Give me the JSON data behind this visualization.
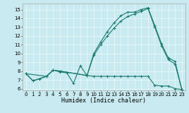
{
  "xlabel": "Humidex (Indice chaleur)",
  "bg_color": "#c8eaf0",
  "grid_color": "#e8f8f8",
  "line_color": "#1a7a6e",
  "xlim": [
    -0.5,
    23.5
  ],
  "ylim": [
    5.8,
    15.7
  ],
  "yticks": [
    6,
    7,
    8,
    9,
    10,
    11,
    12,
    13,
    14,
    15
  ],
  "xticks": [
    0,
    1,
    2,
    3,
    4,
    5,
    6,
    7,
    8,
    9,
    10,
    11,
    12,
    13,
    14,
    15,
    16,
    17,
    18,
    19,
    20,
    21,
    22,
    23
  ],
  "line1_x": [
    0,
    1,
    2,
    3,
    4,
    5,
    6,
    7,
    8,
    9,
    10,
    11,
    12,
    13,
    14,
    15,
    16,
    17,
    18,
    19,
    20,
    21,
    22,
    23
  ],
  "line1_y": [
    7.7,
    6.9,
    7.1,
    7.4,
    8.1,
    7.9,
    7.8,
    6.6,
    8.6,
    7.5,
    7.4,
    7.4,
    7.4,
    7.4,
    7.4,
    7.4,
    7.4,
    7.4,
    7.4,
    6.4,
    6.3,
    6.3,
    6.0,
    5.9
  ],
  "line2_x": [
    0,
    1,
    3,
    4,
    5,
    9,
    10,
    11,
    12,
    13,
    14,
    15,
    16,
    17,
    18,
    19,
    20,
    21,
    22,
    23
  ],
  "line2_y": [
    7.7,
    6.9,
    7.4,
    8.1,
    8.0,
    7.5,
    10.0,
    11.3,
    12.5,
    13.5,
    14.3,
    14.7,
    14.7,
    15.0,
    15.2,
    13.2,
    11.1,
    9.5,
    9.1,
    5.9
  ],
  "line3_x": [
    0,
    3,
    4,
    5,
    9,
    10,
    11,
    12,
    13,
    14,
    15,
    16,
    17,
    18,
    19,
    20,
    21,
    22,
    23
  ],
  "line3_y": [
    7.7,
    7.4,
    8.1,
    8.0,
    7.5,
    9.8,
    11.0,
    12.0,
    12.9,
    13.7,
    14.2,
    14.5,
    14.8,
    15.1,
    13.0,
    10.9,
    9.3,
    8.8,
    5.9
  ]
}
